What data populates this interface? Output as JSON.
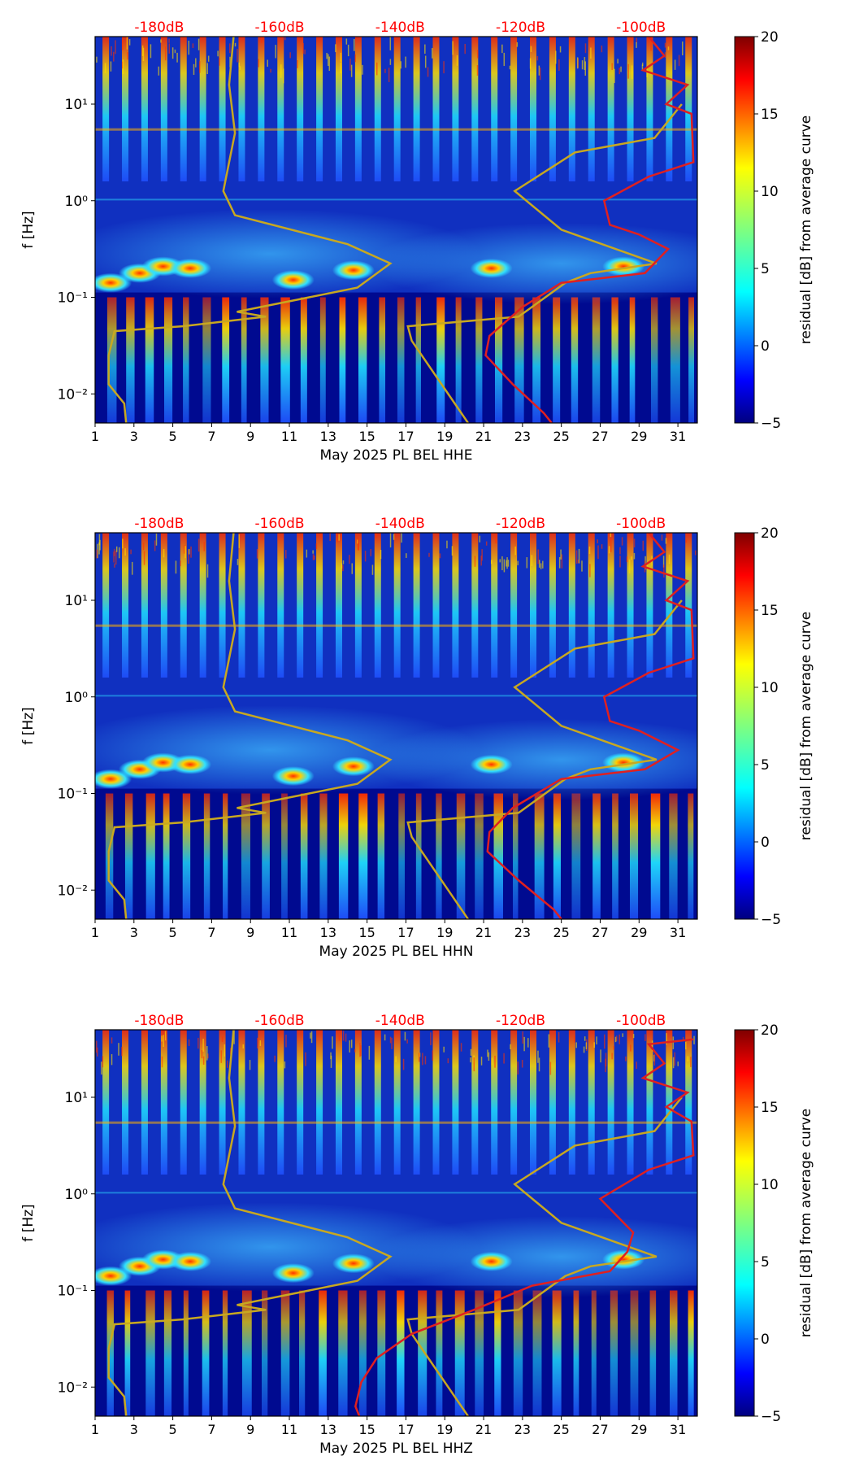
{
  "chart_data": [
    {
      "type": "heatmap",
      "xlabel": "May 2025 PL BEL  HHE",
      "ylabel": "f [Hz]",
      "x_ticks": [
        "1",
        "3",
        "5",
        "7",
        "9",
        "11",
        "13",
        "15",
        "17",
        "19",
        "21",
        "23",
        "25",
        "27",
        "29",
        "31"
      ],
      "x_range": [
        1,
        32
      ],
      "y_ticks": [
        "10⁻²",
        "10⁻¹",
        "10⁰",
        "10¹"
      ],
      "y_range_hz": [
        0.005,
        50
      ],
      "top_axis_labels": [
        "-180dB",
        "-160dB",
        "-140dB",
        "-120dB",
        "-100dB"
      ],
      "top_axis_color": "#ff0000",
      "colorbar": {
        "label": "residual [dB] from average curve",
        "min": -5,
        "max": 20,
        "ticks": [
          "20",
          "15",
          "10",
          "5",
          "0",
          "−5"
        ]
      },
      "noise_model_curve_color": "#c8a820",
      "mean_psd_curve_color": "#e02020"
    },
    {
      "type": "heatmap",
      "xlabel": "May 2025 PL BEL  HHN",
      "ylabel": "f [Hz]",
      "x_ticks": [
        "1",
        "3",
        "5",
        "7",
        "9",
        "11",
        "13",
        "15",
        "17",
        "19",
        "21",
        "23",
        "25",
        "27",
        "29",
        "31"
      ],
      "x_range": [
        1,
        32
      ],
      "y_ticks": [
        "10⁻²",
        "10⁻¹",
        "10⁰",
        "10¹"
      ],
      "y_range_hz": [
        0.005,
        50
      ],
      "top_axis_labels": [
        "-180dB",
        "-160dB",
        "-140dB",
        "-120dB",
        "-100dB"
      ],
      "top_axis_color": "#ff0000",
      "colorbar": {
        "label": "residual [dB] from average curve",
        "min": -5,
        "max": 20,
        "ticks": [
          "20",
          "15",
          "10",
          "5",
          "0",
          "−5"
        ]
      },
      "noise_model_curve_color": "#c8a820",
      "mean_psd_curve_color": "#e02020"
    },
    {
      "type": "heatmap",
      "xlabel": "May 2025 PL BEL  HHZ",
      "ylabel": "f [Hz]",
      "x_ticks": [
        "1",
        "3",
        "5",
        "7",
        "9",
        "11",
        "13",
        "15",
        "17",
        "19",
        "21",
        "23",
        "25",
        "27",
        "29",
        "31"
      ],
      "x_range": [
        1,
        32
      ],
      "y_ticks": [
        "10⁻²",
        "10⁻¹",
        "10⁰",
        "10¹"
      ],
      "y_range_hz": [
        0.005,
        50
      ],
      "top_axis_labels": [
        "-180dB",
        "-160dB",
        "-140dB",
        "-120dB",
        "-100dB"
      ],
      "top_axis_color": "#ff0000",
      "colorbar": {
        "label": "residual [dB] from average curve",
        "min": -5,
        "max": 20,
        "ticks": [
          "20",
          "15",
          "10",
          "5",
          "0",
          "−5"
        ]
      },
      "noise_model_curve_color": "#c8a820",
      "mean_psd_curve_color": "#e02020"
    }
  ]
}
